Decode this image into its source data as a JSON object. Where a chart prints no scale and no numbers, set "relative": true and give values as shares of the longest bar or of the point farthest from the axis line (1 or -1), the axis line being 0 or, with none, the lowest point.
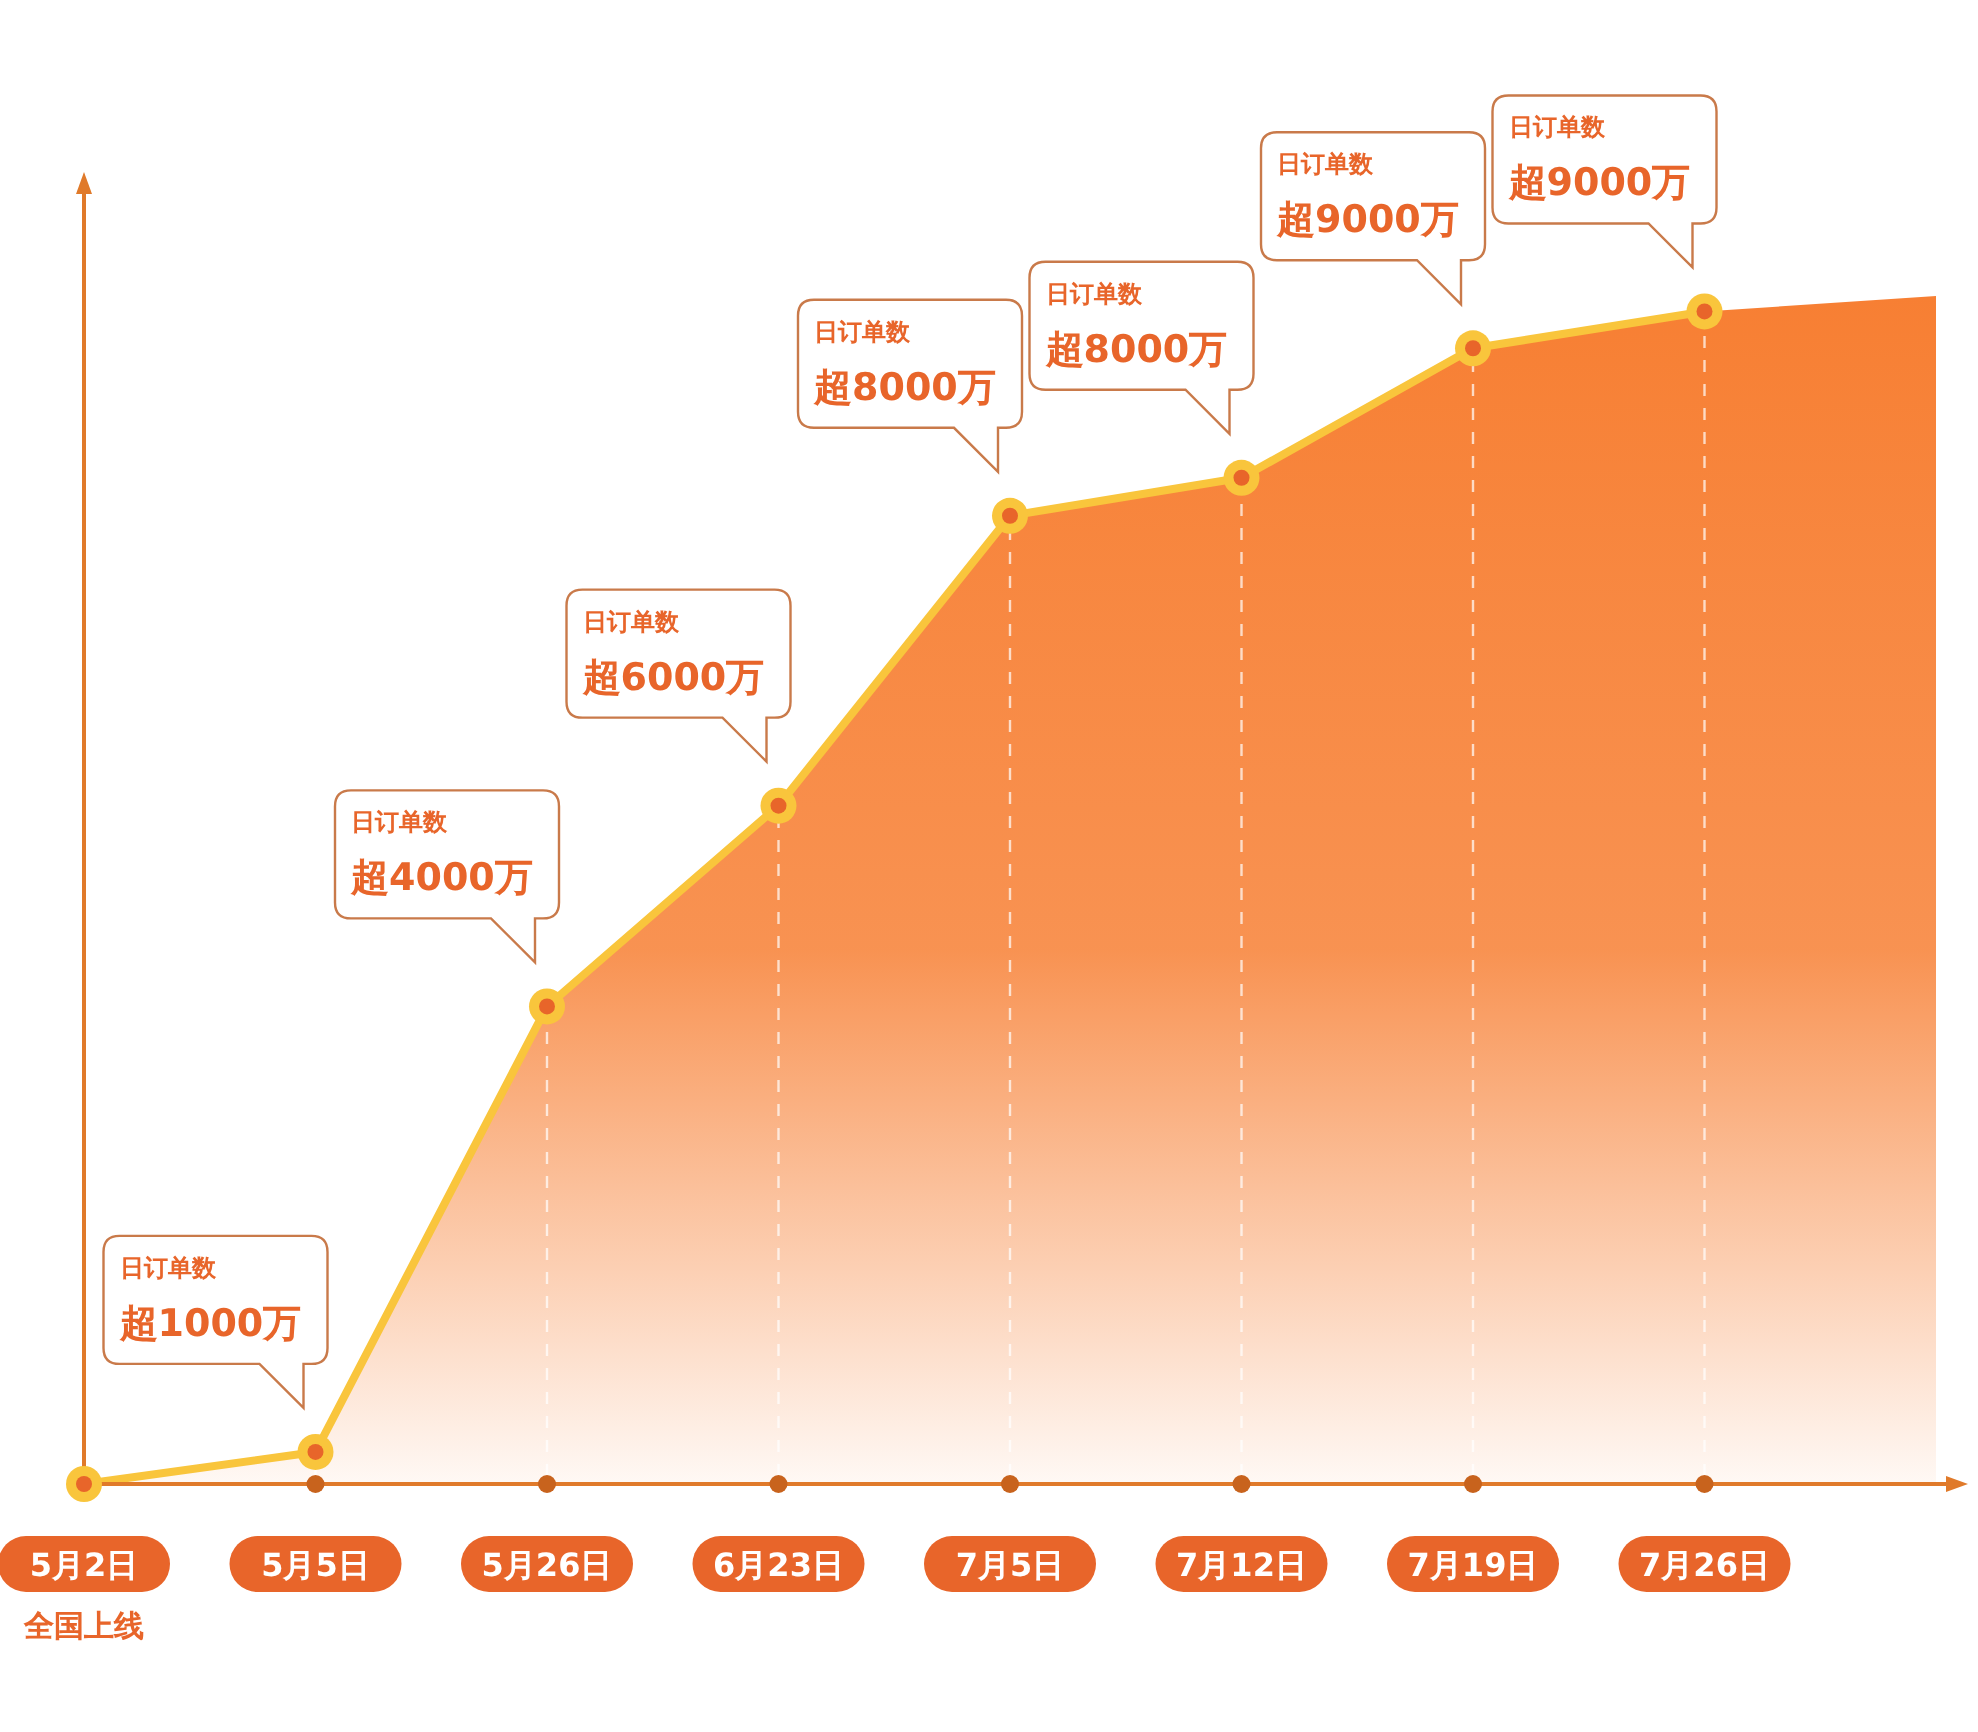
{
  "chart_data": {
    "type": "area",
    "relative": true,
    "color": "#f77f33",
    "marker": "circle",
    "grid": "x",
    "categories": [
      "5月2日",
      "5月5日",
      "5月26日",
      "6月23日",
      "7月5日",
      "7月12日",
      "7月19日",
      "7月26日",
      null
    ],
    "values": [
      0,
      0.027,
      0.402,
      0.571,
      0.815,
      0.847,
      0.956,
      0.987,
      1
    ],
    "annotations": [
      "全国上线",
      "日订单数",
      {
        "text": "超1000万",
        "x": "5月5日",
        "y": 0.027
      },
      "日订单数",
      {
        "text": "超4000万",
        "x": "5月26日",
        "y": 0.402
      },
      "日订单数",
      {
        "text": "超6000万",
        "x": "6月23日",
        "y": 0.571
      },
      "日订单数",
      {
        "text": "超8000万",
        "x": "7月5日",
        "y": 0.815
      },
      "日订单数",
      {
        "text": "超8000万",
        "x": "7月12日",
        "y": 0.847
      },
      "日订单数",
      {
        "text": "超9000万",
        "x": "7月19日",
        "y": 0.956
      },
      "日订单数",
      {
        "text": "超9000万",
        "x": "7月26日",
        "y": 0.987
      }
    ]
  }
}
